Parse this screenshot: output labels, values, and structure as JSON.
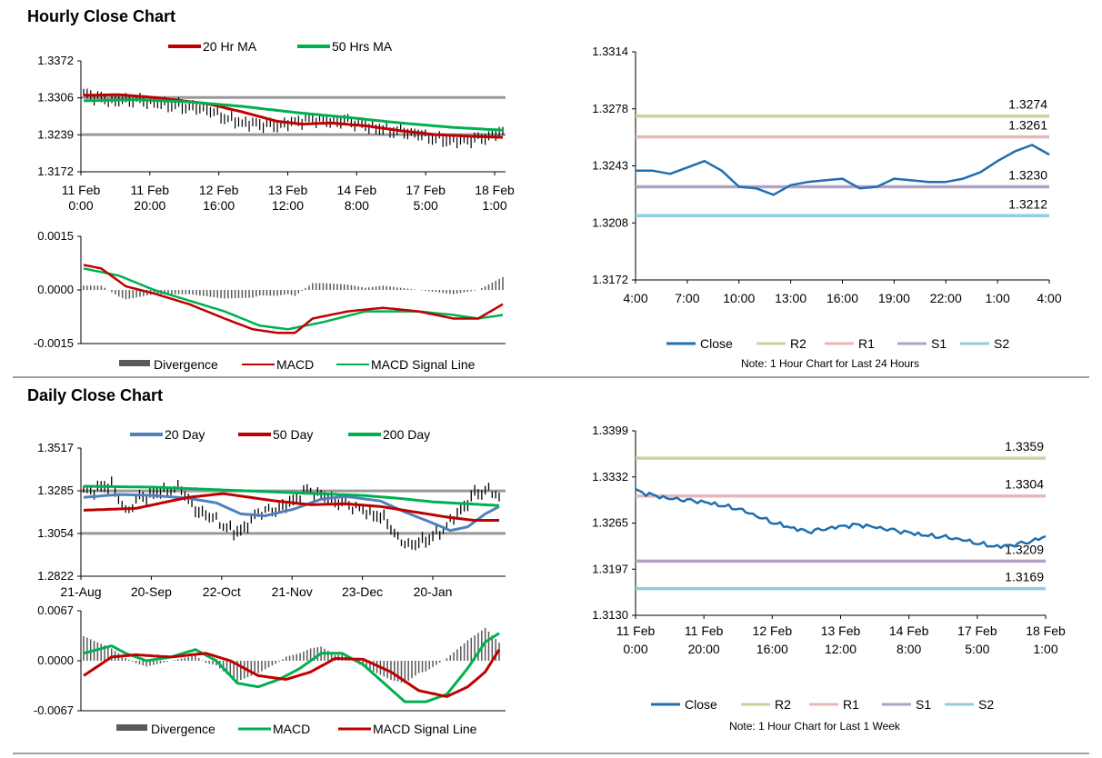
{
  "sections": {
    "hourly_title": "Hourly Close Chart",
    "daily_title": "Daily Close Chart"
  },
  "colors": {
    "ma20": "#c00000",
    "ma50": "#00b050",
    "ma200": "#00b050",
    "day20": "#4f81bd",
    "close": "#1f6fb0",
    "r2": "#c3d69b",
    "r1": "#e6b9b8",
    "s1": "#b3a2c7",
    "s2": "#93cddd",
    "divergence": "#595959",
    "signal_green": "#00b050",
    "macd_red": "#c00000",
    "ref_line": "#999999"
  },
  "chart_data": [
    {
      "id": "hourly_price",
      "type": "line",
      "title": "",
      "legend": [
        "20 Hr MA",
        "50 Hrs MA"
      ],
      "legend_position": "top",
      "ylim": [
        1.3172,
        1.3372
      ],
      "yticks": [
        "1.3372",
        "1.3306",
        "1.3239",
        "1.3172"
      ],
      "ref_lines": [
        1.3306,
        1.3239
      ],
      "xticks": [
        [
          "11 Feb",
          "0:00"
        ],
        [
          "11 Feb",
          "20:00"
        ],
        [
          "12 Feb",
          "16:00"
        ],
        [
          "13 Feb",
          "12:00"
        ],
        [
          "14 Feb",
          "8:00"
        ],
        [
          "17 Feb",
          "5:00"
        ],
        [
          "18 Feb",
          "1:00"
        ]
      ],
      "x_count": 120,
      "series": [
        {
          "name": "20 Hr MA",
          "anchors": [
            [
              0,
              1.331
            ],
            [
              10,
              1.3311
            ],
            [
              20,
              1.3306
            ],
            [
              35,
              1.3295
            ],
            [
              45,
              1.328
            ],
            [
              55,
              1.3263
            ],
            [
              62,
              1.3258
            ],
            [
              70,
              1.326
            ],
            [
              80,
              1.3255
            ],
            [
              90,
              1.3246
            ],
            [
              100,
              1.3239
            ],
            [
              110,
              1.3236
            ],
            [
              119,
              1.3234
            ]
          ]
        },
        {
          "name": "50 Hrs MA",
          "anchors": [
            [
              0,
              1.33
            ],
            [
              15,
              1.3302
            ],
            [
              30,
              1.3298
            ],
            [
              45,
              1.329
            ],
            [
              60,
              1.3279
            ],
            [
              75,
              1.327
            ],
            [
              90,
              1.326
            ],
            [
              105,
              1.3252
            ],
            [
              119,
              1.3247
            ]
          ]
        }
      ],
      "bars_anchors": [
        [
          0,
          1.3312
        ],
        [
          8,
          1.33
        ],
        [
          15,
          1.3302
        ],
        [
          25,
          1.3292
        ],
        [
          35,
          1.3285
        ],
        [
          40,
          1.327
        ],
        [
          45,
          1.326
        ],
        [
          50,
          1.3258
        ],
        [
          55,
          1.3255
        ],
        [
          60,
          1.3262
        ],
        [
          65,
          1.3268
        ],
        [
          70,
          1.3262
        ],
        [
          75,
          1.3265
        ],
        [
          80,
          1.3255
        ],
        [
          85,
          1.3248
        ],
        [
          90,
          1.3245
        ],
        [
          95,
          1.324
        ],
        [
          100,
          1.3232
        ],
        [
          105,
          1.3228
        ],
        [
          110,
          1.323
        ],
        [
          115,
          1.3236
        ],
        [
          119,
          1.3245
        ]
      ]
    },
    {
      "id": "hourly_macd",
      "type": "line",
      "legend": [
        "Divergence",
        "MACD",
        "MACD Signal Line"
      ],
      "legend_position": "bottom",
      "ylim": [
        -0.0015,
        0.0015
      ],
      "yticks": [
        "0.0015",
        "0.0000",
        "-0.0015"
      ],
      "ref_lines": [
        0
      ],
      "x_count": 120,
      "series": [
        {
          "name": "MACD",
          "anchors": [
            [
              0,
              0.0007
            ],
            [
              5,
              0.0006
            ],
            [
              12,
              0.0001
            ],
            [
              20,
              -0.0001
            ],
            [
              30,
              -0.0004
            ],
            [
              40,
              -0.0008
            ],
            [
              48,
              -0.0011
            ],
            [
              55,
              -0.0012
            ],
            [
              60,
              -0.0012
            ],
            [
              65,
              -0.0008
            ],
            [
              75,
              -0.0006
            ],
            [
              85,
              -0.0005
            ],
            [
              95,
              -0.0006
            ],
            [
              105,
              -0.0008
            ],
            [
              112,
              -0.0008
            ],
            [
              119,
              -0.0004
            ]
          ]
        },
        {
          "name": "MACD Signal Line",
          "anchors": [
            [
              0,
              0.0006
            ],
            [
              10,
              0.0004
            ],
            [
              20,
              0.0
            ],
            [
              30,
              -0.0003
            ],
            [
              40,
              -0.0006
            ],
            [
              50,
              -0.001
            ],
            [
              58,
              -0.0011
            ],
            [
              68,
              -0.0009
            ],
            [
              80,
              -0.0006
            ],
            [
              95,
              -0.0006
            ],
            [
              105,
              -0.0007
            ],
            [
              112,
              -0.0008
            ],
            [
              119,
              -0.0007
            ]
          ]
        }
      ]
    },
    {
      "id": "hourly_pivot",
      "type": "line",
      "title": "",
      "ylim": [
        1.3172,
        1.3314
      ],
      "yticks": [
        "1.3314",
        "1.3278",
        "1.3243",
        "1.3208",
        "1.3172"
      ],
      "xticks": [
        "4:00",
        "7:00",
        "10:00",
        "13:00",
        "16:00",
        "19:00",
        "22:00",
        "1:00",
        "4:00"
      ],
      "x_count": 25,
      "levels": [
        {
          "name": "R2",
          "value": 1.3274,
          "label": "1.3274",
          "color_key": "r2"
        },
        {
          "name": "R1",
          "value": 1.3261,
          "label": "1.3261",
          "color_key": "r1"
        },
        {
          "name": "S1",
          "value": 1.323,
          "label": "1.3230",
          "color_key": "s1"
        },
        {
          "name": "S2",
          "value": 1.3212,
          "label": "1.3212",
          "color_key": "s2"
        }
      ],
      "close": [
        1.324,
        1.324,
        1.3238,
        1.3242,
        1.3246,
        1.324,
        1.323,
        1.3229,
        1.3225,
        1.3231,
        1.3233,
        1.3234,
        1.3235,
        1.3229,
        1.323,
        1.3235,
        1.3234,
        1.3233,
        1.3233,
        1.3235,
        1.3239,
        1.3246,
        1.3252,
        1.3256,
        1.325
      ],
      "legend": [
        "Close",
        "R2",
        "R1",
        "S1",
        "S2"
      ],
      "note": "Note: 1 Hour Chart for Last 24 Hours"
    },
    {
      "id": "daily_price",
      "type": "line",
      "legend": [
        "20 Day",
        "50 Day",
        "200 Day"
      ],
      "legend_position": "top",
      "ylim": [
        1.2822,
        1.3517
      ],
      "yticks": [
        "1.3517",
        "1.3285",
        "1.3054",
        "1.2822"
      ],
      "ref_lines": [
        1.3285,
        1.3054
      ],
      "xticks": [
        "21-Aug",
        "20-Sep",
        "22-Oct",
        "21-Nov",
        "23-Dec",
        "20-Jan"
      ],
      "x_count": 120,
      "series": [
        {
          "name": "20 Day",
          "anchors": [
            [
              0,
              1.325
            ],
            [
              10,
              1.3265
            ],
            [
              20,
              1.326
            ],
            [
              30,
              1.3245
            ],
            [
              38,
              1.322
            ],
            [
              45,
              1.316
            ],
            [
              52,
              1.315
            ],
            [
              60,
              1.3185
            ],
            [
              68,
              1.324
            ],
            [
              75,
              1.3255
            ],
            [
              85,
              1.323
            ],
            [
              92,
              1.317
            ],
            [
              100,
              1.311
            ],
            [
              105,
              1.307
            ],
            [
              110,
              1.309
            ],
            [
              115,
              1.316
            ],
            [
              119,
              1.32
            ]
          ]
        },
        {
          "name": "50 Day",
          "anchors": [
            [
              0,
              1.318
            ],
            [
              15,
              1.319
            ],
            [
              30,
              1.325
            ],
            [
              40,
              1.327
            ],
            [
              55,
              1.323
            ],
            [
              65,
              1.321
            ],
            [
              75,
              1.3215
            ],
            [
              85,
              1.32
            ],
            [
              95,
              1.317
            ],
            [
              105,
              1.314
            ],
            [
              112,
              1.3125
            ],
            [
              119,
              1.3125
            ]
          ]
        },
        {
          "name": "200 Day",
          "anchors": [
            [
              0,
              1.331
            ],
            [
              20,
              1.3305
            ],
            [
              40,
              1.329
            ],
            [
              60,
              1.3275
            ],
            [
              80,
              1.326
            ],
            [
              90,
              1.3245
            ],
            [
              100,
              1.3225
            ],
            [
              110,
              1.3215
            ],
            [
              119,
              1.3205
            ]
          ]
        }
      ],
      "bars_anchors": [
        [
          0,
          1.328
        ],
        [
          5,
          1.33
        ],
        [
          8,
          1.332
        ],
        [
          12,
          1.317
        ],
        [
          16,
          1.325
        ],
        [
          22,
          1.328
        ],
        [
          28,
          1.33
        ],
        [
          32,
          1.318
        ],
        [
          36,
          1.315
        ],
        [
          40,
          1.31
        ],
        [
          43,
          1.306
        ],
        [
          46,
          1.308
        ],
        [
          50,
          1.317
        ],
        [
          55,
          1.318
        ],
        [
          60,
          1.323
        ],
        [
          64,
          1.329
        ],
        [
          68,
          1.326
        ],
        [
          72,
          1.323
        ],
        [
          76,
          1.321
        ],
        [
          80,
          1.318
        ],
        [
          84,
          1.315
        ],
        [
          87,
          1.312
        ],
        [
          90,
          1.302
        ],
        [
          94,
          1.299
        ],
        [
          98,
          1.302
        ],
        [
          102,
          1.306
        ],
        [
          105,
          1.312
        ],
        [
          108,
          1.318
        ],
        [
          112,
          1.327
        ],
        [
          116,
          1.329
        ],
        [
          119,
          1.325
        ]
      ]
    },
    {
      "id": "daily_macd",
      "type": "line",
      "legend": [
        "Divergence",
        "MACD",
        "MACD Signal Line"
      ],
      "legend_position": "bottom",
      "ylim": [
        -0.0067,
        0.0067
      ],
      "yticks": [
        "0.0067",
        "0.0000",
        "-0.0067"
      ],
      "ref_lines": [
        0
      ],
      "x_count": 120,
      "series": [
        {
          "name": "MACD",
          "anchors": [
            [
              0,
              0.001
            ],
            [
              8,
              0.002
            ],
            [
              12,
              0.001
            ],
            [
              18,
              0.0
            ],
            [
              25,
              0.0005
            ],
            [
              32,
              0.0015
            ],
            [
              38,
              0.0
            ],
            [
              44,
              -0.003
            ],
            [
              50,
              -0.0035
            ],
            [
              56,
              -0.0025
            ],
            [
              62,
              -0.001
            ],
            [
              68,
              0.001
            ],
            [
              74,
              0.001
            ],
            [
              80,
              -0.0005
            ],
            [
              86,
              -0.003
            ],
            [
              92,
              -0.0055
            ],
            [
              98,
              -0.0055
            ],
            [
              104,
              -0.0045
            ],
            [
              110,
              -0.001
            ],
            [
              115,
              0.0025
            ],
            [
              119,
              0.0037
            ]
          ]
        },
        {
          "name": "MACD Signal Line",
          "anchors": [
            [
              0,
              -0.002
            ],
            [
              8,
              0.0005
            ],
            [
              15,
              0.0008
            ],
            [
              25,
              0.0005
            ],
            [
              35,
              0.001
            ],
            [
              42,
              0.0
            ],
            [
              50,
              -0.002
            ],
            [
              58,
              -0.0025
            ],
            [
              65,
              -0.0015
            ],
            [
              72,
              0.0003
            ],
            [
              80,
              0.0002
            ],
            [
              88,
              -0.0015
            ],
            [
              96,
              -0.004
            ],
            [
              104,
              -0.0048
            ],
            [
              110,
              -0.0035
            ],
            [
              115,
              -0.0015
            ],
            [
              119,
              0.0015
            ]
          ]
        }
      ]
    },
    {
      "id": "daily_pivot",
      "type": "line",
      "ylim": [
        1.313,
        1.3399
      ],
      "yticks": [
        "1.3399",
        "1.3332",
        "1.3265",
        "1.3197",
        "1.3130"
      ],
      "xticks": [
        [
          "11 Feb",
          "0:00"
        ],
        [
          "11 Feb",
          "20:00"
        ],
        [
          "12 Feb",
          "16:00"
        ],
        [
          "13 Feb",
          "12:00"
        ],
        [
          "14 Feb",
          "8:00"
        ],
        [
          "17 Feb",
          "5:00"
        ],
        [
          "18 Feb",
          "1:00"
        ]
      ],
      "x_count": 120,
      "levels": [
        {
          "name": "R2",
          "value": 1.3359,
          "label": "1.3359",
          "color_key": "r2"
        },
        {
          "name": "R1",
          "value": 1.3304,
          "label": "1.3304",
          "color_key": "r1"
        },
        {
          "name": "S1",
          "value": 1.3209,
          "label": "1.3209",
          "color_key": "s1"
        },
        {
          "name": "S2",
          "value": 1.3169,
          "label": "1.3169",
          "color_key": "s2"
        }
      ],
      "close_anchors": [
        [
          0,
          1.3312
        ],
        [
          5,
          1.3305
        ],
        [
          10,
          1.33
        ],
        [
          15,
          1.3298
        ],
        [
          20,
          1.3295
        ],
        [
          25,
          1.329
        ],
        [
          30,
          1.3285
        ],
        [
          35,
          1.3275
        ],
        [
          40,
          1.3265
        ],
        [
          45,
          1.3258
        ],
        [
          50,
          1.3252
        ],
        [
          55,
          1.3256
        ],
        [
          60,
          1.326
        ],
        [
          65,
          1.3262
        ],
        [
          70,
          1.3258
        ],
        [
          75,
          1.3254
        ],
        [
          80,
          1.325
        ],
        [
          85,
          1.3246
        ],
        [
          90,
          1.3244
        ],
        [
          95,
          1.324
        ],
        [
          100,
          1.3234
        ],
        [
          105,
          1.323
        ],
        [
          110,
          1.3233
        ],
        [
          115,
          1.3238
        ],
        [
          119,
          1.3245
        ]
      ],
      "legend": [
        "Close",
        "R2",
        "R1",
        "S1",
        "S2"
      ],
      "note": "Note: 1 Hour Chart for  Last 1 Week"
    }
  ]
}
